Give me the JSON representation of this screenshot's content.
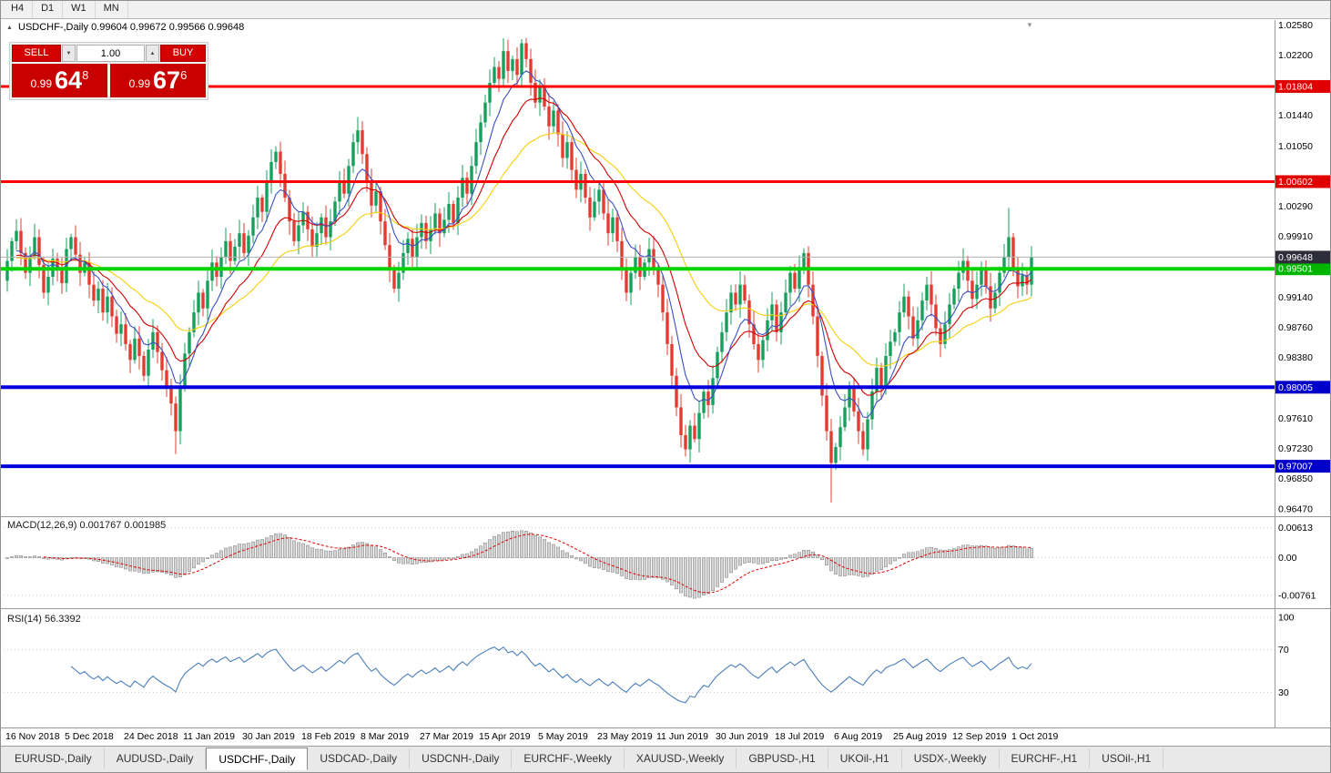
{
  "toolbar": {
    "timeframes": [
      "H4",
      "D1",
      "W1",
      "MN"
    ]
  },
  "header": {
    "symbol": "USDCHF-,Daily",
    "ohlc": "0.99604 0.99672 0.99566 0.99648"
  },
  "icons": {
    "triangle_up": "▲",
    "triangle_down": "▼",
    "step_down": "▼",
    "step_up": "▲"
  },
  "trade_widget": {
    "sell_label": "SELL",
    "buy_label": "BUY",
    "volume": "1.00",
    "sell_price_small": "0.99",
    "sell_price_big": "64",
    "sell_price_sup": "8",
    "buy_price_small": "0.99",
    "buy_price_big": "67",
    "buy_price_sup": "6"
  },
  "panels": {
    "macd_label": "MACD(12,26,9) 0.001767 0.001985",
    "rsi_label": "RSI(14) 56.3392"
  },
  "tabs": [
    "EURUSD-,Daily",
    "AUDUSD-,Daily",
    "USDCHF-,Daily",
    "USDCAD-,Daily",
    "USDCNH-,Daily",
    "EURCHF-,Weekly",
    "XAUUSD-,Weekly",
    "GBPUSD-,H1",
    "UKOil-,H1",
    "USDX-,Weekly",
    "EURCHF-,H1",
    "USOil-,H1"
  ],
  "chart_data": {
    "type": "candlestick",
    "symbol": "USDCHF-",
    "timeframe": "Daily",
    "first_open": 0.9935,
    "closes": [
      0.996,
      0.9985,
      0.9998,
      0.997,
      0.9945,
      0.9966,
      0.999,
      0.9955,
      0.992,
      0.994,
      0.9963,
      0.9948,
      0.9932,
      0.9975,
      0.999,
      0.9968,
      0.9945,
      0.9958,
      0.993,
      0.991,
      0.9925,
      0.9895,
      0.9915,
      0.989,
      0.9868,
      0.988,
      0.9855,
      0.9835,
      0.9862,
      0.984,
      0.9815,
      0.9848,
      0.987,
      0.9845,
      0.9822,
      0.98,
      0.978,
      0.9745,
      0.98,
      0.9843,
      0.987,
      0.9895,
      0.992,
      0.99,
      0.9935,
      0.9958,
      0.994,
      0.9965,
      0.9985,
      0.996,
      0.9978,
      0.9995,
      0.997,
      0.9992,
      1.0015,
      1.004,
      1.0022,
      1.006,
      1.0085,
      1.0098,
      1.007,
      1.004,
      1.001,
      0.9985,
      1.0005,
      1.0022,
      1.0,
      0.9978,
      0.9995,
      1.0015,
      0.999,
      1.001,
      1.0035,
      1.006,
      1.0045,
      1.008,
      1.011,
      1.0125,
      1.0095,
      1.006,
      1.003,
      1.0048,
      1.001,
      0.998,
      0.995,
      0.9925,
      0.9945,
      0.997,
      0.9988,
      0.9965,
      0.999,
      1.0008,
      0.9985,
      1.0,
      1.002,
      0.9995,
      1.0012,
      1.0032,
      1.0008,
      1.004,
      1.0065,
      1.0045,
      1.008,
      1.011,
      1.0135,
      1.016,
      1.0185,
      1.0205,
      1.019,
      1.0225,
      1.02,
      1.0215,
      1.0195,
      1.0235,
      1.0215,
      1.0185,
      1.016,
      1.018,
      1.0155,
      1.013,
      1.015,
      1.012,
      1.009,
      1.011,
      1.0075,
      1.005,
      1.007,
      1.004,
      1.0015,
      1.0035,
      1.005,
      1.002,
      0.9995,
      1.0015,
      0.9985,
      0.995,
      0.992,
      0.9945,
      0.9965,
      0.994,
      0.9958,
      0.9975,
      0.995,
      0.993,
      0.9895,
      0.9855,
      0.9815,
      0.9775,
      0.974,
      0.9722,
      0.9752,
      0.9735,
      0.9768,
      0.9795,
      0.9778,
      0.9812,
      0.9845,
      0.987,
      0.9895,
      0.992,
      0.9905,
      0.993,
      0.991,
      0.988,
      0.9855,
      0.9835,
      0.986,
      0.9885,
      0.9905,
      0.987,
      0.9895,
      0.992,
      0.9945,
      0.9925,
      0.995,
      0.997,
      0.993,
      0.989,
      0.984,
      0.979,
      0.9745,
      0.9705,
      0.9725,
      0.975,
      0.9775,
      0.98,
      0.977,
      0.9745,
      0.9722,
      0.976,
      0.9795,
      0.9825,
      0.98,
      0.984,
      0.9858,
      0.987,
      0.9895,
      0.9915,
      0.989,
      0.9862,
      0.9885,
      0.991,
      0.993,
      0.9905,
      0.9875,
      0.9855,
      0.988,
      0.9905,
      0.9925,
      0.9945,
      0.996,
      0.9935,
      0.9912,
      0.993,
      0.995,
      0.9928,
      0.99,
      0.992,
      0.9945,
      0.9965,
      0.999,
      0.995,
      0.9928,
      0.9942,
      0.993,
      0.9965
    ],
    "wick_overrides": {
      "37": {
        "low": 0.9716
      },
      "113": {
        "high": 1.024
      },
      "149": {
        "low": 0.9713
      },
      "175": {
        "high": 0.9976
      },
      "181": {
        "low": 0.9655
      },
      "188": {
        "low": 0.9714
      },
      "220": {
        "high": 1.0027
      }
    },
    "x_labels": [
      {
        "idx": 0,
        "label": "16 Nov 2018"
      },
      {
        "idx": 13,
        "label": "5 Dec 2018"
      },
      {
        "idx": 26,
        "label": "24 Dec 2018"
      },
      {
        "idx": 39,
        "label": "11 Jan 2019"
      },
      {
        "idx": 52,
        "label": "30 Jan 2019"
      },
      {
        "idx": 65,
        "label": "18 Feb 2019"
      },
      {
        "idx": 78,
        "label": "8 Mar 2019"
      },
      {
        "idx": 91,
        "label": "27 Mar 2019"
      },
      {
        "idx": 104,
        "label": "15 Apr 2019"
      },
      {
        "idx": 117,
        "label": "5 May 2019"
      },
      {
        "idx": 130,
        "label": "23 May 2019"
      },
      {
        "idx": 143,
        "label": "11 Jun 2019"
      },
      {
        "idx": 156,
        "label": "30 Jun 2019"
      },
      {
        "idx": 169,
        "label": "18 Jul 2019"
      },
      {
        "idx": 182,
        "label": "6 Aug 2019"
      },
      {
        "idx": 195,
        "label": "25 Aug 2019"
      },
      {
        "idx": 208,
        "label": "12 Sep 2019"
      },
      {
        "idx": 221,
        "label": "1 Oct 2019"
      }
    ],
    "y_ticks": [
      1.0258,
      1.022,
      1.0144,
      1.0105,
      1.0029,
      0.9991,
      0.9914,
      0.9876,
      0.9838,
      0.9761,
      0.9723,
      0.9685,
      0.9647
    ],
    "price_range": {
      "min": 0.9641,
      "max": 1.0262
    },
    "hlines": [
      {
        "price": 1.01804,
        "color": "#ff0000",
        "lw": 3,
        "label_bg": "#e00000"
      },
      {
        "price": 1.00602,
        "color": "#ff0000",
        "lw": 3,
        "label_bg": "#e00000"
      },
      {
        "price": 0.99501,
        "color": "#00d300",
        "lw": 4,
        "label_bg": "#00b400"
      },
      {
        "price": 0.98005,
        "color": "#0000dc",
        "lw": 4,
        "label_bg": "#0000c8"
      },
      {
        "price": 0.97007,
        "color": "#0000dc",
        "lw": 4,
        "label_bg": "#0000c8"
      }
    ],
    "current_price": {
      "value": 0.99648,
      "label_bg": "#2e2e3a",
      "line_color": "#b0b0b0"
    },
    "ma_lines": [
      {
        "period": 34,
        "color": "#f4cf0a"
      },
      {
        "period": 16,
        "color": "#d40000"
      },
      {
        "period": 8,
        "color": "#3a4fc4"
      }
    ],
    "colors": {
      "bull": "#16a05c",
      "bear": "#e03c31",
      "macd_hist_fill": "#d4d4d4",
      "macd_hist_stroke": "#828282",
      "macd_signal": "#e00000",
      "rsi_line": "#4a7ebb",
      "grid": "#cccccc"
    },
    "macd": {
      "fast": 12,
      "slow": 26,
      "signal": 9,
      "value": "0.001767",
      "signal_value": "0.001985",
      "ticks": [
        {
          "v": 0.00613,
          "label": "0.00613"
        },
        {
          "v": 0,
          "label": "0.00"
        },
        {
          "v": -0.00761,
          "label": "-0.00761"
        }
      ],
      "range": {
        "min": -0.0095,
        "max": 0.0075
      }
    },
    "rsi": {
      "period": 14,
      "value": "56.3392",
      "ticks": [
        {
          "v": 100,
          "label": "100"
        },
        {
          "v": 70,
          "label": "70"
        },
        {
          "v": 30,
          "label": "30"
        }
      ],
      "range": {
        "min": 0,
        "max": 100
      }
    }
  }
}
